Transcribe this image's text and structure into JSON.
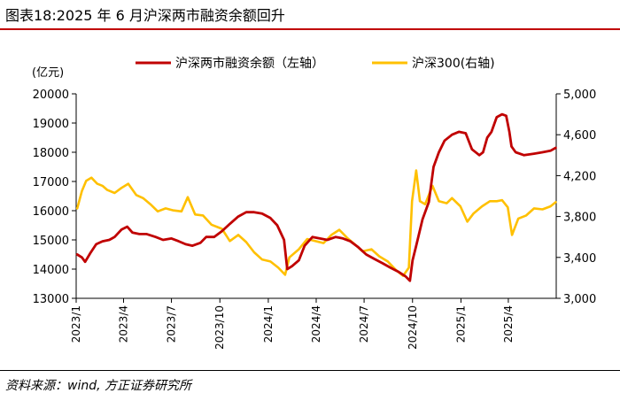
{
  "header": {
    "title": "图表18:2025 年 6 月沪深两市融资余额回升"
  },
  "footer": {
    "source": "资料来源：wind, 方正证券研究所"
  },
  "colors": {
    "left_series": "#c00000",
    "right_series": "#ffc000",
    "title_rule": "#c00000"
  },
  "chart_data": {
    "type": "line",
    "ylabel_left": "(亿元)",
    "ylim_left": [
      13000,
      20000
    ],
    "yticks_left": [
      "20000",
      "19000",
      "18000",
      "17000",
      "16000",
      "15000",
      "14000",
      "13000"
    ],
    "ylim_right": [
      3000,
      5000
    ],
    "yticks_right": [
      "5,000",
      "4,600",
      "4,200",
      "3,800",
      "3,400",
      "3,000"
    ],
    "x_range": [
      "2023-01-01",
      "2025-07-01"
    ],
    "xticks": [
      "2023/1",
      "2023/4",
      "2023/7",
      "2023/10",
      "2024/1",
      "2024/4",
      "2024/7",
      "2024/10",
      "2025/1",
      "2025/4"
    ],
    "legend_position": "top",
    "grid": false,
    "series": [
      {
        "name": "沪深两市融资余额（左轴）",
        "axis": "left",
        "points": [
          [
            "2023-01-03",
            14500
          ],
          [
            "2023-01-12",
            14400
          ],
          [
            "2023-01-18",
            14250
          ],
          [
            "2023-01-28",
            14550
          ],
          [
            "2023-02-08",
            14850
          ],
          [
            "2023-02-20",
            14950
          ],
          [
            "2023-03-05",
            15000
          ],
          [
            "2023-03-15",
            15100
          ],
          [
            "2023-03-28",
            15350
          ],
          [
            "2023-04-08",
            15450
          ],
          [
            "2023-04-18",
            15250
          ],
          [
            "2023-05-01",
            15200
          ],
          [
            "2023-05-15",
            15200
          ],
          [
            "2023-06-01",
            15100
          ],
          [
            "2023-06-15",
            15000
          ],
          [
            "2023-07-01",
            15050
          ],
          [
            "2023-07-15",
            14950
          ],
          [
            "2023-07-28",
            14850
          ],
          [
            "2023-08-10",
            14800
          ],
          [
            "2023-08-25",
            14900
          ],
          [
            "2023-09-05",
            15100
          ],
          [
            "2023-09-20",
            15100
          ],
          [
            "2023-10-05",
            15300
          ],
          [
            "2023-10-20",
            15550
          ],
          [
            "2023-11-05",
            15800
          ],
          [
            "2023-11-20",
            15950
          ],
          [
            "2023-12-05",
            15950
          ],
          [
            "2023-12-20",
            15900
          ],
          [
            "2024-01-05",
            15750
          ],
          [
            "2024-01-18",
            15500
          ],
          [
            "2024-01-31",
            15000
          ],
          [
            "2024-02-06",
            14000
          ],
          [
            "2024-02-15",
            14100
          ],
          [
            "2024-02-28",
            14300
          ],
          [
            "2024-03-10",
            14800
          ],
          [
            "2024-03-25",
            15100
          ],
          [
            "2024-04-08",
            15050
          ],
          [
            "2024-04-22",
            15000
          ],
          [
            "2024-05-08",
            15100
          ],
          [
            "2024-05-22",
            15050
          ],
          [
            "2024-06-05",
            14950
          ],
          [
            "2024-06-20",
            14750
          ],
          [
            "2024-07-05",
            14500
          ],
          [
            "2024-07-20",
            14350
          ],
          [
            "2024-08-05",
            14200
          ],
          [
            "2024-08-20",
            14050
          ],
          [
            "2024-09-05",
            13900
          ],
          [
            "2024-09-18",
            13750
          ],
          [
            "2024-09-26",
            13600
          ],
          [
            "2024-10-01",
            14300
          ],
          [
            "2024-10-08",
            14800
          ],
          [
            "2024-10-20",
            15700
          ],
          [
            "2024-11-01",
            16300
          ],
          [
            "2024-11-10",
            17500
          ],
          [
            "2024-11-20",
            18000
          ],
          [
            "2024-12-01",
            18400
          ],
          [
            "2024-12-15",
            18600
          ],
          [
            "2024-12-28",
            18700
          ],
          [
            "2025-01-10",
            18650
          ],
          [
            "2025-01-22",
            18100
          ],
          [
            "2025-02-05",
            17900
          ],
          [
            "2025-02-12",
            18000
          ],
          [
            "2025-02-20",
            18500
          ],
          [
            "2025-02-28",
            18700
          ],
          [
            "2025-03-10",
            19200
          ],
          [
            "2025-03-20",
            19300
          ],
          [
            "2025-03-28",
            19250
          ],
          [
            "2025-04-03",
            18700
          ],
          [
            "2025-04-07",
            18200
          ],
          [
            "2025-04-15",
            18000
          ],
          [
            "2025-05-01",
            17900
          ],
          [
            "2025-05-20",
            17950
          ],
          [
            "2025-06-05",
            18000
          ],
          [
            "2025-06-20",
            18050
          ],
          [
            "2025-06-30",
            18150
          ]
        ]
      },
      {
        "name": "沪深300(右轴)",
        "axis": "right",
        "points": [
          [
            "2023-01-03",
            3880
          ],
          [
            "2023-01-12",
            4050
          ],
          [
            "2023-01-20",
            4150
          ],
          [
            "2023-01-30",
            4180
          ],
          [
            "2023-02-10",
            4120
          ],
          [
            "2023-02-20",
            4100
          ],
          [
            "2023-03-01",
            4060
          ],
          [
            "2023-03-15",
            4030
          ],
          [
            "2023-03-28",
            4080
          ],
          [
            "2023-04-10",
            4120
          ],
          [
            "2023-04-25",
            4010
          ],
          [
            "2023-05-08",
            3980
          ],
          [
            "2023-05-22",
            3920
          ],
          [
            "2023-06-05",
            3850
          ],
          [
            "2023-06-20",
            3880
          ],
          [
            "2023-07-05",
            3860
          ],
          [
            "2023-07-20",
            3850
          ],
          [
            "2023-08-01",
            3990
          ],
          [
            "2023-08-15",
            3820
          ],
          [
            "2023-08-30",
            3810
          ],
          [
            "2023-09-15",
            3720
          ],
          [
            "2023-10-05",
            3680
          ],
          [
            "2023-10-20",
            3560
          ],
          [
            "2023-11-05",
            3620
          ],
          [
            "2023-11-20",
            3550
          ],
          [
            "2023-12-05",
            3450
          ],
          [
            "2023-12-20",
            3380
          ],
          [
            "2024-01-05",
            3360
          ],
          [
            "2024-01-20",
            3300
          ],
          [
            "2024-02-02",
            3230
          ],
          [
            "2024-02-10",
            3400
          ],
          [
            "2024-02-28",
            3480
          ],
          [
            "2024-03-15",
            3580
          ],
          [
            "2024-03-30",
            3560
          ],
          [
            "2024-04-15",
            3540
          ],
          [
            "2024-04-30",
            3620
          ],
          [
            "2024-05-15",
            3670
          ],
          [
            "2024-05-30",
            3590
          ],
          [
            "2024-06-15",
            3520
          ],
          [
            "2024-06-28",
            3460
          ],
          [
            "2024-07-15",
            3480
          ],
          [
            "2024-07-30",
            3410
          ],
          [
            "2024-08-15",
            3360
          ],
          [
            "2024-08-30",
            3280
          ],
          [
            "2024-09-13",
            3220
          ],
          [
            "2024-09-24",
            3300
          ],
          [
            "2024-09-30",
            3950
          ],
          [
            "2024-10-08",
            4250
          ],
          [
            "2024-10-15",
            3950
          ],
          [
            "2024-10-25",
            3920
          ],
          [
            "2024-11-08",
            4100
          ],
          [
            "2024-11-20",
            3950
          ],
          [
            "2024-12-05",
            3930
          ],
          [
            "2024-12-15",
            3980
          ],
          [
            "2024-12-31",
            3900
          ],
          [
            "2025-01-13",
            3750
          ],
          [
            "2025-01-25",
            3830
          ],
          [
            "2025-02-10",
            3900
          ],
          [
            "2025-02-25",
            3950
          ],
          [
            "2025-03-10",
            3950
          ],
          [
            "2025-03-20",
            3960
          ],
          [
            "2025-03-31",
            3890
          ],
          [
            "2025-04-08",
            3620
          ],
          [
            "2025-04-20",
            3780
          ],
          [
            "2025-05-05",
            3810
          ],
          [
            "2025-05-20",
            3880
          ],
          [
            "2025-06-05",
            3870
          ],
          [
            "2025-06-20",
            3900
          ],
          [
            "2025-06-30",
            3940
          ]
        ]
      }
    ]
  }
}
